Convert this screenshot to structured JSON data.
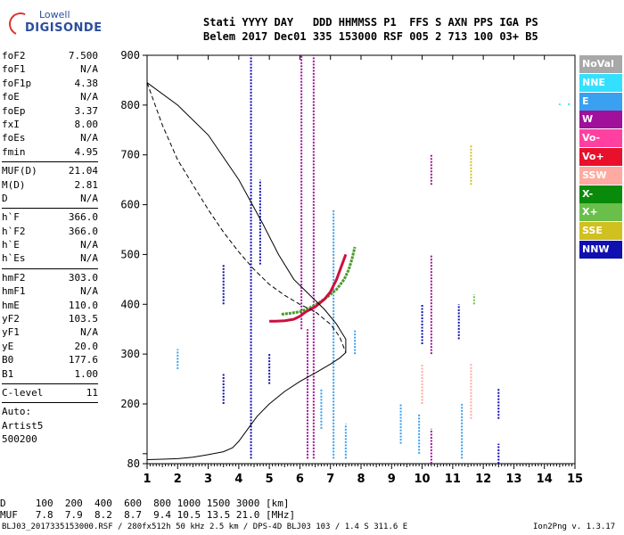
{
  "logo": {
    "line1": "Lowell",
    "line2": "DIGISONDE"
  },
  "header": {
    "line1": "Stati YYYY DAY   DDD HHMMSS P1  FFS S AXN PPS IGA PS",
    "line2": "Belem 2017 Dec01 335 153000 RSF 005 2 713 100 03+ B5"
  },
  "params": [
    {
      "k": "foF2",
      "v": "7.500"
    },
    {
      "k": "foF1",
      "v": "N/A"
    },
    {
      "k": "foF1p",
      "v": "4.38"
    },
    {
      "k": "foE",
      "v": "N/A"
    },
    {
      "k": "foEp",
      "v": "3.37"
    },
    {
      "k": "fxI",
      "v": "8.00"
    },
    {
      "k": "foEs",
      "v": "N/A"
    },
    {
      "k": "fmin",
      "v": "4.95"
    },
    {
      "sep": true
    },
    {
      "k": "MUF(D)",
      "v": "21.04"
    },
    {
      "k": "M(D)",
      "v": "2.81"
    },
    {
      "k": "D",
      "v": "N/A"
    },
    {
      "sep": true
    },
    {
      "k": "h`F",
      "v": "366.0"
    },
    {
      "k": "h`F2",
      "v": "366.0"
    },
    {
      "k": "h`E",
      "v": "N/A"
    },
    {
      "k": "h`Es",
      "v": "N/A"
    },
    {
      "sep": true
    },
    {
      "k": "hmF2",
      "v": "303.0"
    },
    {
      "k": "hmF1",
      "v": "N/A"
    },
    {
      "k": "hmE",
      "v": "110.0"
    },
    {
      "k": "yF2",
      "v": "103.5"
    },
    {
      "k": "yF1",
      "v": "N/A"
    },
    {
      "k": "yE",
      "v": "20.0"
    },
    {
      "k": "B0",
      "v": "177.6"
    },
    {
      "k": "B1",
      "v": "1.00"
    },
    {
      "sep": true
    },
    {
      "k": "C-level",
      "v": "11"
    },
    {
      "sep": true
    },
    {
      "k": "Auto:",
      "v": ""
    },
    {
      "k": "Artist5",
      "v": ""
    },
    {
      "k": "500200",
      "v": ""
    }
  ],
  "legend": [
    {
      "label": "NoVal",
      "color": "#a8a8a8"
    },
    {
      "label": "NNE",
      "color": "#33e0ff"
    },
    {
      "label": "E",
      "color": "#3aa0f0"
    },
    {
      "label": "W",
      "color": "#a0109a"
    },
    {
      "label": "Vo-",
      "color": "#ff40a0"
    },
    {
      "label": "Vo+",
      "color": "#e8102a"
    },
    {
      "label": "SSW",
      "color": "#ffaaa0"
    },
    {
      "label": "X-",
      "color": "#0a8a0a"
    },
    {
      "label": "X+",
      "color": "#6abf4a"
    },
    {
      "label": "SSE",
      "color": "#d0c020"
    },
    {
      "label": "NNW",
      "color": "#1010b0"
    }
  ],
  "chart_data": {
    "type": "scatter",
    "xlabel": "",
    "ylabel": "",
    "xlim": [
      1,
      15
    ],
    "ylim": [
      80,
      900
    ],
    "x_ticks": [
      1,
      2,
      3,
      4,
      5,
      6,
      7,
      8,
      9,
      10,
      11,
      12,
      13,
      14,
      15
    ],
    "y_ticks": [
      80,
      100,
      200,
      300,
      400,
      500,
      600,
      700,
      800,
      900
    ],
    "y_tick_labels": [
      "80",
      "",
      "200",
      "300",
      "400",
      "500",
      "600",
      "700",
      "800",
      "900"
    ],
    "grid": false,
    "profile_solid": [
      [
        1.0,
        88
      ],
      [
        1.5,
        89
      ],
      [
        2.0,
        90
      ],
      [
        2.5,
        93
      ],
      [
        3.0,
        98
      ],
      [
        3.5,
        104
      ],
      [
        3.8,
        112
      ],
      [
        4.0,
        125
      ],
      [
        4.3,
        150
      ],
      [
        4.6,
        175
      ],
      [
        5.0,
        200
      ],
      [
        5.5,
        225
      ],
      [
        6.0,
        245
      ],
      [
        6.5,
        262
      ],
      [
        7.0,
        280
      ],
      [
        7.3,
        292
      ],
      [
        7.5,
        303
      ],
      [
        7.5,
        330
      ],
      [
        7.2,
        360
      ],
      [
        6.8,
        390
      ],
      [
        6.3,
        420
      ],
      [
        5.8,
        450
      ],
      [
        5.3,
        500
      ],
      [
        4.8,
        560
      ],
      [
        4.0,
        650
      ],
      [
        3.0,
        740
      ],
      [
        2.0,
        800
      ],
      [
        1.0,
        845
      ]
    ],
    "profile_dashed": [
      [
        1.0,
        845
      ],
      [
        1.5,
        760
      ],
      [
        2.0,
        690
      ],
      [
        2.5,
        640
      ],
      [
        3.0,
        590
      ],
      [
        3.5,
        545
      ],
      [
        4.0,
        505
      ],
      [
        4.5,
        470
      ],
      [
        5.0,
        440
      ],
      [
        5.5,
        418
      ],
      [
        6.0,
        400
      ],
      [
        6.5,
        385
      ],
      [
        7.0,
        360
      ],
      [
        7.3,
        335
      ],
      [
        7.5,
        303
      ]
    ],
    "trace_o": [
      [
        5.0,
        366
      ],
      [
        5.2,
        366
      ],
      [
        5.5,
        367
      ],
      [
        5.8,
        370
      ],
      [
        6.0,
        376
      ],
      [
        6.2,
        385
      ],
      [
        6.5,
        395
      ],
      [
        6.8,
        410
      ],
      [
        7.0,
        425
      ],
      [
        7.2,
        450
      ],
      [
        7.35,
        475
      ],
      [
        7.5,
        500
      ]
    ],
    "trace_x": [
      [
        5.4,
        380
      ],
      [
        5.7,
        382
      ],
      [
        6.0,
        385
      ],
      [
        6.3,
        392
      ],
      [
        6.6,
        402
      ],
      [
        6.9,
        415
      ],
      [
        7.2,
        430
      ],
      [
        7.45,
        450
      ],
      [
        7.6,
        470
      ],
      [
        7.7,
        490
      ],
      [
        7.8,
        515
      ]
    ],
    "series": [
      {
        "name": "W",
        "color": "#a0109a",
        "lines": [
          [
            6.05,
            350,
            900
          ],
          [
            6.45,
            90,
            900
          ],
          [
            10.3,
            300,
            500
          ],
          [
            10.3,
            640,
            700
          ],
          [
            10.3,
            80,
            150
          ],
          [
            6.25,
            90,
            350
          ]
        ]
      },
      {
        "name": "NNW",
        "color": "#1010b0",
        "lines": [
          [
            4.4,
            90,
            900
          ],
          [
            3.5,
            200,
            260
          ],
          [
            3.5,
            400,
            480
          ],
          [
            4.7,
            480,
            650
          ],
          [
            5.0,
            240,
            300
          ],
          [
            10.0,
            320,
            400
          ],
          [
            11.2,
            330,
            400
          ],
          [
            12.5,
            170,
            230
          ],
          [
            12.5,
            80,
            120
          ]
        ]
      },
      {
        "name": "E",
        "color": "#3aa0f0",
        "lines": [
          [
            7.1,
            90,
            590
          ],
          [
            2.0,
            270,
            310
          ],
          [
            9.3,
            120,
            200
          ],
          [
            9.9,
            100,
            180
          ],
          [
            11.3,
            90,
            200
          ],
          [
            7.8,
            300,
            350
          ],
          [
            6.7,
            150,
            230
          ],
          [
            7.5,
            90,
            160
          ]
        ]
      },
      {
        "name": "NNE",
        "color": "#33e0ff",
        "lines": [
          [
            14.8,
            800,
            805
          ],
          [
            14.5,
            800,
            803
          ]
        ]
      },
      {
        "name": "SSW",
        "color": "#ffaaa0",
        "lines": [
          [
            11.6,
            170,
            280
          ],
          [
            10.0,
            200,
            280
          ]
        ]
      },
      {
        "name": "SSE",
        "color": "#d0c020",
        "lines": [
          [
            11.6,
            640,
            720
          ]
        ]
      },
      {
        "name": "X+",
        "color": "#6abf4a",
        "lines": [
          [
            11.7,
            400,
            420
          ]
        ]
      }
    ]
  },
  "footer": {
    "d_row": "D     100  200  400  600  800 1000 1500 3000 [km]",
    "muf_row": "MUF   7.8  7.9  8.2  8.7  9.4 10.5 13.5 21.0 [MHz]",
    "file_line": "BLJ03_2017335153000.RSF / 280fx512h 50 kHz 2.5 km / DPS-4D BLJ03 103 / 1.4 S 311.6 E",
    "version": "Ion2Png v. 1.3.17"
  }
}
